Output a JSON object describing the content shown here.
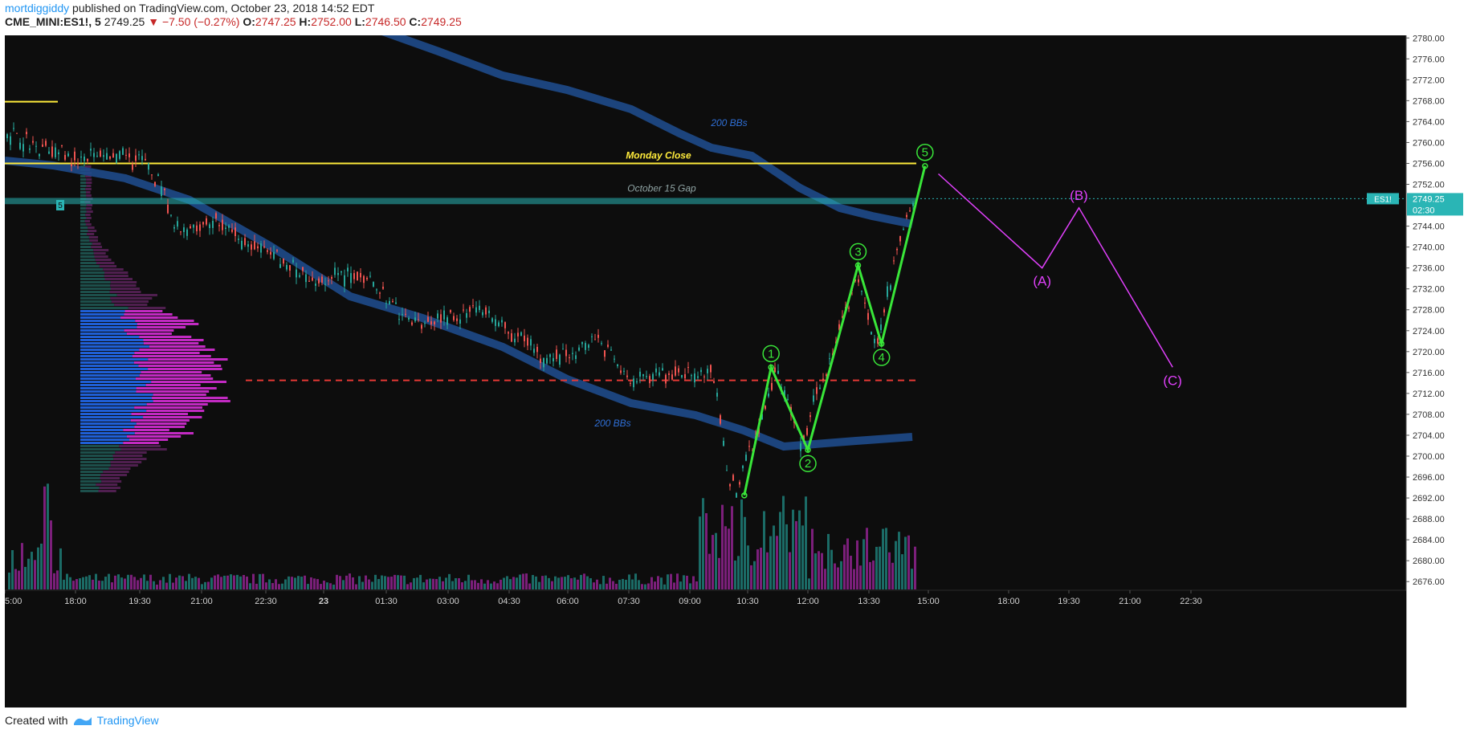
{
  "header": {
    "author": "mortdiggiddy",
    "published_text": "published on TradingView.com, October 23, 2018 14:52 EDT",
    "symbol": "CME_MINI:ES1!, 5",
    "last": "2749.25",
    "change": "▼ −7.50 (−0.27%)",
    "o_label": "O:",
    "o_value": "2747.25",
    "h_label": "H:",
    "h_value": "2752.00",
    "l_label": "L:",
    "l_value": "2746.50",
    "c_label": "C:",
    "c_value": "2749.25"
  },
  "footer": {
    "created_with": "Created with",
    "brand": "TradingView"
  },
  "colors": {
    "background": "#0d0d0d",
    "price_axis_bg": "#ffffff",
    "up_candle": "#26a69a",
    "down_candle": "#ef5350",
    "bbands": "#1e4a8a",
    "monday_close": "#ffeb3b",
    "gap_band": "#2ab5b5",
    "poc_line": "#e53935",
    "elliott_green": "#39e639",
    "abc_magenta": "#e040fb",
    "vol_up": "#1b6b66",
    "vol_down": "#7b1f7a"
  },
  "chart_data": {
    "type": "candlestick",
    "symbol": "CME_MINI:ES1!",
    "interval": "5",
    "y_axis": {
      "ticks": [
        2780.0,
        2776.0,
        2772.0,
        2768.0,
        2764.0,
        2760.0,
        2756.0,
        2752.0,
        2748.0,
        2744.0,
        2740.0,
        2736.0,
        2732.0,
        2728.0,
        2724.0,
        2720.0,
        2716.0,
        2712.0,
        2708.0,
        2704.0,
        2700.0,
        2696.0,
        2692.0,
        2688.0,
        2684.0,
        2680.0,
        2676.0
      ],
      "range": [
        2674.5,
        2780.5
      ]
    },
    "x_axis": {
      "tick_labels": [
        "5:00",
        "18:00",
        "19:30",
        "21:00",
        "22:30",
        "23",
        "01:30",
        "03:00",
        "04:30",
        "06:00",
        "07:30",
        "09:00",
        "10:30",
        "12:00",
        "13:30",
        "15:00",
        "18:00",
        "19:30",
        "21:00",
        "22:30"
      ]
    },
    "last_price": 2749.25,
    "symbol_tag": "ES1!",
    "countdown": "02:30",
    "session_marker": "5",
    "horizontal_levels": [
      {
        "name": "Monday Close",
        "price": 2756.0
      },
      {
        "name": "October 15 Gap",
        "price_low": 2748.2,
        "price_high": 2749.4
      },
      {
        "name": "",
        "price": 2714.5
      },
      {
        "name": "",
        "price": 2767.8
      }
    ],
    "bb_labels": [
      "200 BBs",
      "200 BBs"
    ],
    "elliott_waves": [
      {
        "label": "1",
        "x": "11:05",
        "price": 2717.0
      },
      {
        "label": "2",
        "x": "12:00",
        "price": 2701.2
      },
      {
        "label": "3",
        "x": "13:15",
        "price": 2736.5
      },
      {
        "label": "4",
        "x": "13:50",
        "price": 2721.5
      },
      {
        "label": "5",
        "x": "14:55",
        "price": 2755.5
      }
    ],
    "wave_start": {
      "x": "10:25",
      "price": 2692.5
    },
    "abc_projection": [
      {
        "label": "",
        "x": "15:15",
        "price": 2754.0
      },
      {
        "label": "(A)",
        "x": "17:50",
        "price": 2736.0
      },
      {
        "label": "(B)",
        "x": "18:45",
        "price": 2747.5
      },
      {
        "label": "(C)",
        "x": "21:05",
        "price": 2717.0
      }
    ]
  }
}
